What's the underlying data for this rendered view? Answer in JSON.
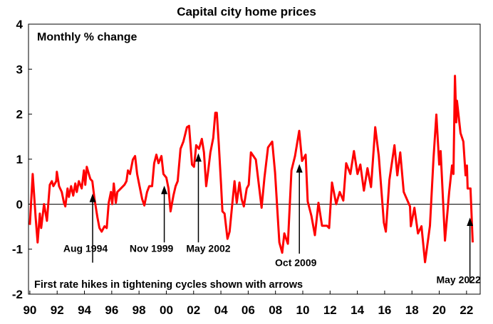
{
  "chart_data": {
    "type": "line",
    "title": "Capital city home prices",
    "ylabel": "Monthly % change",
    "xlabel": "",
    "ylim": [
      -2,
      4
    ],
    "yticks": [
      -2,
      -1,
      0,
      1,
      2,
      3,
      4
    ],
    "xlim": [
      1989.9,
      2023
    ],
    "xticks": [
      {
        "year": 1990,
        "label": "90"
      },
      {
        "year": 1992,
        "label": "92"
      },
      {
        "year": 1994,
        "label": "94"
      },
      {
        "year": 1996,
        "label": "96"
      },
      {
        "year": 1998,
        "label": "98"
      },
      {
        "year": 2000,
        "label": "00"
      },
      {
        "year": 2002,
        "label": "02"
      },
      {
        "year": 2004,
        "label": "04"
      },
      {
        "year": 2006,
        "label": "06"
      },
      {
        "year": 2008,
        "label": "08"
      },
      {
        "year": 2010,
        "label": "10"
      },
      {
        "year": 2012,
        "label": "12"
      },
      {
        "year": 2014,
        "label": "14"
      },
      {
        "year": 2016,
        "label": "16"
      },
      {
        "year": 2018,
        "label": "18"
      },
      {
        "year": 2020,
        "label": "20"
      },
      {
        "year": 2022,
        "label": "22"
      }
    ],
    "grid": false,
    "series": [
      {
        "name": "Monthly % change",
        "color": "#ff0000",
        "x": [
          1990.0,
          1990.21,
          1990.42,
          1990.57,
          1990.73,
          1990.83,
          1991.04,
          1991.25,
          1991.46,
          1991.61,
          1991.72,
          1991.93,
          1991.98,
          1992.14,
          1992.34,
          1992.5,
          1992.6,
          1992.76,
          1992.86,
          1993.02,
          1993.18,
          1993.33,
          1993.44,
          1993.59,
          1993.8,
          1993.96,
          1994.06,
          1994.17,
          1994.32,
          1994.43,
          1994.58,
          1994.74,
          1994.95,
          1995.1,
          1995.26,
          1995.47,
          1995.63,
          1995.78,
          1995.94,
          1996.04,
          1996.15,
          1996.3,
          1996.41,
          1996.67,
          1996.93,
          1997.08,
          1997.19,
          1997.34,
          1997.55,
          1997.71,
          1997.86,
          1998.02,
          1998.23,
          1998.39,
          1998.59,
          1998.75,
          1998.96,
          1999.11,
          1999.27,
          1999.43,
          1999.64,
          1999.79,
          2000.0,
          2000.16,
          2000.31,
          2000.52,
          2000.68,
          2000.83,
          2001.04,
          2001.25,
          2001.51,
          2001.67,
          2001.88,
          2002.03,
          2002.19,
          2002.4,
          2002.6,
          2002.76,
          2002.92,
          2003.07,
          2003.23,
          2003.44,
          2003.59,
          2003.7,
          2003.85,
          2004.01,
          2004.11,
          2004.27,
          2004.48,
          2004.64,
          2004.84,
          2005.0,
          2005.16,
          2005.36,
          2005.52,
          2005.68,
          2005.89,
          2006.04,
          2006.2,
          2006.56,
          2006.98,
          2007.19,
          2007.45,
          2007.76,
          2007.97,
          2008.28,
          2008.49,
          2008.65,
          2008.91,
          2009.17,
          2009.43,
          2009.74,
          2009.95,
          2010.21,
          2010.36,
          2010.63,
          2010.89,
          2011.15,
          2011.41,
          2011.77,
          2011.93,
          2012.14,
          2012.45,
          2012.71,
          2012.97,
          2013.18,
          2013.49,
          2013.75,
          2014.01,
          2014.22,
          2014.48,
          2014.74,
          2015.0,
          2015.21,
          2015.31,
          2015.57,
          2015.94,
          2016.09,
          2016.35,
          2016.72,
          2016.93,
          2017.14,
          2017.4,
          2017.86,
          2017.92,
          2018.18,
          2018.44,
          2018.7,
          2018.96,
          2019.32,
          2019.58,
          2019.79,
          2020.0,
          2020.1,
          2020.42,
          2020.73,
          2020.94,
          2021.04,
          2021.15,
          2021.25,
          2021.3,
          2021.56,
          2021.77,
          2021.93,
          2022.03,
          2022.08,
          2022.29,
          2022.45
        ],
        "y": [
          -0.46,
          0.67,
          -0.29,
          -0.85,
          -0.21,
          -0.53,
          0,
          -0.37,
          0.43,
          0.51,
          0.4,
          0.51,
          0.72,
          0.4,
          0.27,
          0.03,
          -0.05,
          0.35,
          0.16,
          0.4,
          0.19,
          0.46,
          0.27,
          0.51,
          0.35,
          0.75,
          0.43,
          0.83,
          0.67,
          0.56,
          0.51,
          0.11,
          -0.29,
          -0.53,
          -0.61,
          -0.49,
          -0.53,
          0.03,
          0.27,
          0,
          0.46,
          0.03,
          0.27,
          0.35,
          0.43,
          0.51,
          0.75,
          0.67,
          0.99,
          1.07,
          0.67,
          0.43,
          0.11,
          -0.03,
          0.27,
          0.4,
          0.4,
          0.91,
          1.1,
          0.91,
          1.07,
          0.67,
          0.59,
          0.35,
          -0.16,
          0.19,
          0.4,
          0.51,
          1.23,
          1.39,
          1.71,
          1.74,
          0.88,
          0.83,
          1.31,
          1.23,
          1.45,
          1.15,
          0.4,
          0.75,
          1.15,
          1.47,
          2.03,
          2.03,
          1.31,
          0.43,
          -0.16,
          -0.21,
          -0.77,
          -0.61,
          0.03,
          0.51,
          0.03,
          0.48,
          0.11,
          -0.05,
          0.35,
          0.43,
          1.15,
          0.99,
          -0.08,
          0.59,
          1.26,
          1.39,
          0.7,
          -0.85,
          -1.08,
          -0.65,
          -0.88,
          0.75,
          1.07,
          1.63,
          0.96,
          1.1,
          0.06,
          -0.26,
          -0.69,
          0.03,
          -0.48,
          -0.48,
          -0.53,
          0.48,
          0,
          0.27,
          0.08,
          0.91,
          0.67,
          1.18,
          0.67,
          0.88,
          0.3,
          0.8,
          0.38,
          1.28,
          1.71,
          1.07,
          -0.41,
          -0.61,
          0.54,
          1.31,
          0.64,
          1.15,
          0.27,
          -0.05,
          -0.49,
          -0.08,
          -0.65,
          -0.49,
          -1.29,
          -0.48,
          1.02,
          1.99,
          0.88,
          1.18,
          -0.81,
          0.27,
          0.86,
          0.67,
          2.85,
          1.82,
          2.3,
          1.58,
          1.39,
          0.64,
          0.86,
          0.35,
          0.35,
          -0.85
        ]
      }
    ],
    "annotations": [
      {
        "label": "Aug 1994",
        "year": 1994.6,
        "arrow_tip": 0.2,
        "arrow_base": -1.3
      },
      {
        "label": "Nov 1999",
        "year": 1999.85,
        "arrow_tip": 0.38,
        "arrow_base": -0.85
      },
      {
        "label": "May 2002",
        "year": 2002.35,
        "arrow_tip": 1.1,
        "arrow_base": -0.85
      },
      {
        "label": "Oct 2009",
        "year": 2009.75,
        "arrow_tip": 0.86,
        "arrow_base": -1.1
      },
      {
        "label": "May 2022",
        "year": 2022.25,
        "arrow_tip": -0.33,
        "arrow_base": -1.75
      }
    ],
    "footnote": "First rate hikes in tightening cycles shown with arrows"
  }
}
